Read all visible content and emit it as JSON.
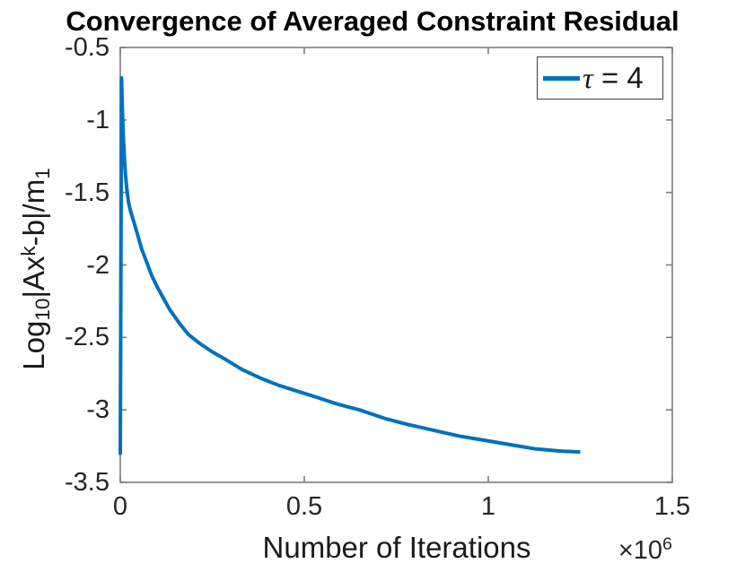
{
  "chart": {
    "title": "Convergence of Averaged Constraint Residual",
    "xlabel": "Number of Iterations",
    "x_multiplier": {
      "base": "×10",
      "exp": "6"
    },
    "ylabel_segments": [
      {
        "t": "Log"
      },
      {
        "t": "10",
        "s": "sub"
      },
      {
        "t": "|Ax"
      },
      {
        "t": "k",
        "s": "sup"
      },
      {
        "t": "-b|/m"
      },
      {
        "t": "1",
        "s": "sub"
      }
    ],
    "legend": {
      "tau_symbol": "τ",
      "label_rest": " = 4",
      "line_color": "#0072BD"
    },
    "colors": {
      "line": "#0072BD",
      "axis": "#7d7d7d",
      "tick_label": "#262626",
      "title": "#000000",
      "legend_border": "#3c3c3c"
    }
  },
  "chart_data": {
    "type": "line",
    "title": "Convergence of Averaged Constraint Residual",
    "xlabel": "Number of Iterations (×10^6)",
    "ylabel": "Log_10 |Ax^k - b| / m_1",
    "xlim": [
      0,
      1500000
    ],
    "ylim": [
      -3.5,
      -0.5
    ],
    "x_ticks": [
      0,
      500000,
      1000000,
      1500000
    ],
    "x_tick_labels": [
      "0",
      "0.5",
      "1",
      "1.5"
    ],
    "y_ticks": [
      -0.5,
      -1,
      -1.5,
      -2,
      -2.5,
      -3,
      -3.5
    ],
    "y_tick_labels": [
      "-0.5",
      "-1",
      "-1.5",
      "-2",
      "-2.5",
      "-3",
      "-3.5"
    ],
    "grid": false,
    "legend_position": "top-right",
    "legend": [
      {
        "label": "τ = 4",
        "color": "#0072BD"
      }
    ],
    "series": [
      {
        "name": "τ = 4",
        "color": "#0072BD",
        "points": [
          [
            0,
            -3.31
          ],
          [
            3500,
            -0.71
          ],
          [
            5500,
            -0.92
          ],
          [
            8000,
            -1.1
          ],
          [
            11000,
            -1.25
          ],
          [
            14000,
            -1.37
          ],
          [
            17500,
            -1.47
          ],
          [
            22000,
            -1.56
          ],
          [
            27000,
            -1.62
          ],
          [
            33000,
            -1.67
          ],
          [
            40000,
            -1.73
          ],
          [
            48000,
            -1.8
          ],
          [
            58000,
            -1.89
          ],
          [
            70000,
            -1.97
          ],
          [
            85000,
            -2.07
          ],
          [
            100000,
            -2.15
          ],
          [
            115000,
            -2.22
          ],
          [
            135000,
            -2.31
          ],
          [
            160000,
            -2.4
          ],
          [
            185000,
            -2.48
          ],
          [
            215000,
            -2.54
          ],
          [
            250000,
            -2.6
          ],
          [
            285000,
            -2.65
          ],
          [
            330000,
            -2.72
          ],
          [
            380000,
            -2.78
          ],
          [
            430000,
            -2.83
          ],
          [
            480000,
            -2.87
          ],
          [
            530000,
            -2.91
          ],
          [
            590000,
            -2.96
          ],
          [
            650000,
            -3.0
          ],
          [
            720000,
            -3.06
          ],
          [
            780000,
            -3.1
          ],
          [
            850000,
            -3.14
          ],
          [
            920000,
            -3.18
          ],
          [
            990000,
            -3.21
          ],
          [
            1060000,
            -3.24
          ],
          [
            1130000,
            -3.27
          ],
          [
            1200000,
            -3.285
          ],
          [
            1250000,
            -3.29
          ]
        ]
      }
    ]
  },
  "layout_note": ""
}
